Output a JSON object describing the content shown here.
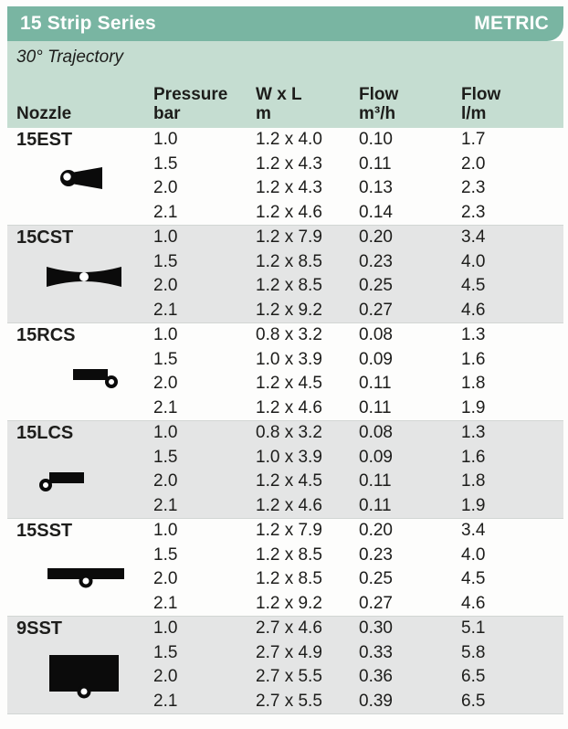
{
  "header": {
    "title": "15 Strip Series",
    "badge": "METRIC"
  },
  "subheader": {
    "trajectory": "30° Trajectory"
  },
  "columns": [
    {
      "top": "",
      "bottom": "Nozzle"
    },
    {
      "top": "Pressure",
      "bottom": "bar"
    },
    {
      "top": "W x L",
      "bottom": "m"
    },
    {
      "top": "Flow",
      "bottom": "m³/h"
    },
    {
      "top": "Flow",
      "bottom": "l/m"
    }
  ],
  "groups": [
    {
      "nozzle": "15EST",
      "icon": "est-nozzle-icon",
      "rows": [
        [
          "1.0",
          "1.2 x 4.0",
          "0.10",
          "1.7"
        ],
        [
          "1.5",
          "1.2 x 4.3",
          "0.11",
          "2.0"
        ],
        [
          "2.0",
          "1.2 x 4.3",
          "0.13",
          "2.3"
        ],
        [
          "2.1",
          "1.2 x 4.6",
          "0.14",
          "2.3"
        ]
      ]
    },
    {
      "nozzle": "15CST",
      "icon": "cst-nozzle-icon",
      "rows": [
        [
          "1.0",
          "1.2 x 7.9",
          "0.20",
          "3.4"
        ],
        [
          "1.5",
          "1.2 x 8.5",
          "0.23",
          "4.0"
        ],
        [
          "2.0",
          "1.2 x 8.5",
          "0.25",
          "4.5"
        ],
        [
          "2.1",
          "1.2 x 9.2",
          "0.27",
          "4.6"
        ]
      ]
    },
    {
      "nozzle": "15RCS",
      "icon": "rcs-nozzle-icon",
      "rows": [
        [
          "1.0",
          "0.8 x 3.2",
          "0.08",
          "1.3"
        ],
        [
          "1.5",
          "1.0 x 3.9",
          "0.09",
          "1.6"
        ],
        [
          "2.0",
          "1.2 x 4.5",
          "0.11",
          "1.8"
        ],
        [
          "2.1",
          "1.2 x 4.6",
          "0.11",
          "1.9"
        ]
      ]
    },
    {
      "nozzle": "15LCS",
      "icon": "lcs-nozzle-icon",
      "rows": [
        [
          "1.0",
          "0.8 x 3.2",
          "0.08",
          "1.3"
        ],
        [
          "1.5",
          "1.0 x 3.9",
          "0.09",
          "1.6"
        ],
        [
          "2.0",
          "1.2 x 4.5",
          "0.11",
          "1.8"
        ],
        [
          "2.1",
          "1.2 x 4.6",
          "0.11",
          "1.9"
        ]
      ]
    },
    {
      "nozzle": "15SST",
      "icon": "sst-nozzle-icon",
      "rows": [
        [
          "1.0",
          "1.2 x 7.9",
          "0.20",
          "3.4"
        ],
        [
          "1.5",
          "1.2 x 8.5",
          "0.23",
          "4.0"
        ],
        [
          "2.0",
          "1.2 x 8.5",
          "0.25",
          "4.5"
        ],
        [
          "2.1",
          "1.2 x 9.2",
          "0.27",
          "4.6"
        ]
      ]
    },
    {
      "nozzle": "9SST",
      "icon": "nine-sst-nozzle-icon",
      "rows": [
        [
          "1.0",
          "2.7 x 4.6",
          "0.30",
          "5.1"
        ],
        [
          "1.5",
          "2.7 x 4.9",
          "0.33",
          "5.8"
        ],
        [
          "2.0",
          "2.7 x 5.5",
          "0.36",
          "6.5"
        ],
        [
          "2.1",
          "2.7 x 5.5",
          "0.39",
          "6.5"
        ]
      ]
    }
  ],
  "colors": {
    "header_green": "#79b5a2",
    "band_green": "#c5ddd1",
    "row_shade_gray": "#e4e5e5",
    "text": "#1d1d1b"
  }
}
